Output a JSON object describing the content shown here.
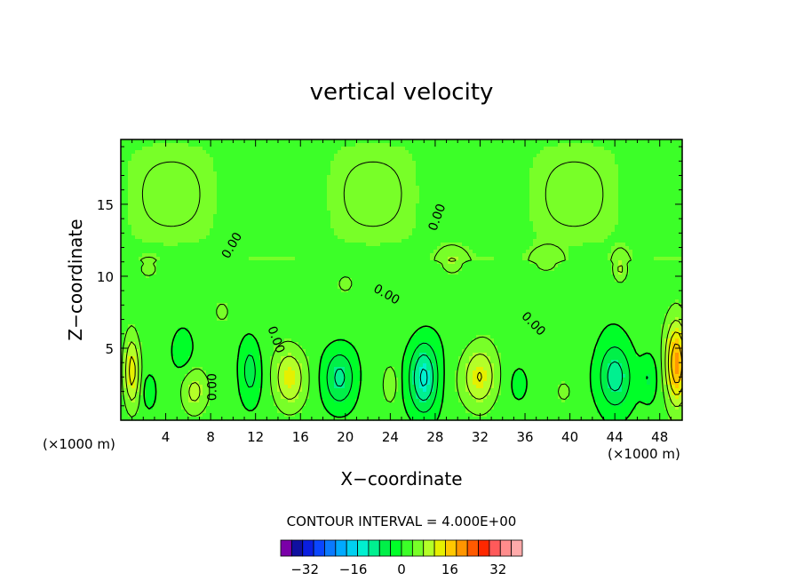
{
  "chart_data": {
    "type": "heatmap",
    "title": "vertical velocity",
    "xlabel": "X−coordinate",
    "ylabel": "Z−coordinate",
    "x_unit_label": "(×1000 m)",
    "x_unit_label_left": "(×1000 m)",
    "xlim": [
      0,
      50
    ],
    "ylim": [
      0,
      19.5
    ],
    "x_ticks": [
      4,
      8,
      12,
      16,
      20,
      24,
      28,
      32,
      36,
      40,
      44,
      48
    ],
    "x_tick_labels": [
      "4",
      "8",
      "12",
      "16",
      "20",
      "24",
      "28",
      "32",
      "36",
      "40",
      "44",
      "48"
    ],
    "y_ticks": [
      5,
      10,
      15
    ],
    "y_tick_labels": [
      "5",
      "10",
      "15"
    ],
    "contour_interval_text": "CONTOUR INTERVAL = 4.000E+00",
    "contour_interval": 4,
    "zero_contour_label": "0.00",
    "colorbar": {
      "min": -40,
      "max": 40,
      "tick_values": [
        -32,
        -16,
        0,
        16,
        32
      ],
      "tick_labels": [
        "−32",
        "−16",
        "0",
        "16",
        "32"
      ],
      "colors": [
        "#7a00a8",
        "#1010a0",
        "#0a1ee0",
        "#0a46ff",
        "#0a7aff",
        "#00aaff",
        "#00d0f0",
        "#00f0d0",
        "#00f090",
        "#00f048",
        "#00ff28",
        "#3cff28",
        "#78ff28",
        "#b4ff28",
        "#e6f000",
        "#ffc800",
        "#ff9600",
        "#ff5a00",
        "#ff2800",
        "#ff5a5a",
        "#ff8c8c",
        "#ffaaaa"
      ]
    },
    "cells": [
      {
        "x": 1,
        "z": 3.5,
        "value": 12,
        "sx": 0.7,
        "sz": 2.6
      },
      {
        "x": 2.5,
        "z": 2.0,
        "value": -5,
        "sx": 0.6,
        "sz": 1.2
      },
      {
        "x": 5.5,
        "z": 5.0,
        "value": -5,
        "sx": 0.9,
        "sz": 1.5
      },
      {
        "x": 6.5,
        "z": 2.0,
        "value": 8,
        "sx": 1.2,
        "sz": 1.6
      },
      {
        "x": 11.5,
        "z": 3.5,
        "value": -7,
        "sx": 0.9,
        "sz": 2.2
      },
      {
        "x": 15,
        "z": 3.0,
        "value": 10,
        "sx": 1.5,
        "sz": 2.2
      },
      {
        "x": 19.5,
        "z": 3.0,
        "value": -10,
        "sx": 1.4,
        "sz": 2.0
      },
      {
        "x": 24,
        "z": 2.5,
        "value": 6,
        "sx": 0.6,
        "sz": 1.3
      },
      {
        "x": 27,
        "z": 3.0,
        "value": -14,
        "sx": 1.3,
        "sz": 2.5
      },
      {
        "x": 32,
        "z": 3.0,
        "value": 11,
        "sx": 1.6,
        "sz": 2.2
      },
      {
        "x": 35.5,
        "z": 2.5,
        "value": -4,
        "sx": 0.8,
        "sz": 1.2
      },
      {
        "x": 39.5,
        "z": 2.0,
        "value": 4,
        "sx": 0.9,
        "sz": 1.0
      },
      {
        "x": 44,
        "z": 3.0,
        "value": -12,
        "sx": 1.5,
        "sz": 2.3
      },
      {
        "x": 49.5,
        "z": 4.0,
        "value": 18,
        "sx": 1.0,
        "sz": 3.0
      },
      {
        "x": 47,
        "z": 3.0,
        "value": -5,
        "sx": 0.7,
        "sz": 1.5
      },
      {
        "x": 9,
        "z": 7.5,
        "value": 4,
        "sx": 0.9,
        "sz": 1.0
      },
      {
        "x": 20,
        "z": 9.5,
        "value": 5,
        "sx": 0.7,
        "sz": 0.6
      },
      {
        "x": 29.5,
        "z": 11.0,
        "value": 5,
        "sx": 1.0,
        "sz": 0.8
      },
      {
        "x": 44.5,
        "z": 10.5,
        "value": 7,
        "sx": 0.6,
        "sz": 0.9
      },
      {
        "x": 2.5,
        "z": 10.5,
        "value": 4,
        "sx": 0.8,
        "sz": 0.6
      },
      {
        "x": 38,
        "z": 11.0,
        "value": 4,
        "sx": 1.2,
        "sz": 0.8
      }
    ],
    "background_value": 1.5,
    "upper_region": {
      "z_from": 11,
      "value": 3.5
    }
  }
}
